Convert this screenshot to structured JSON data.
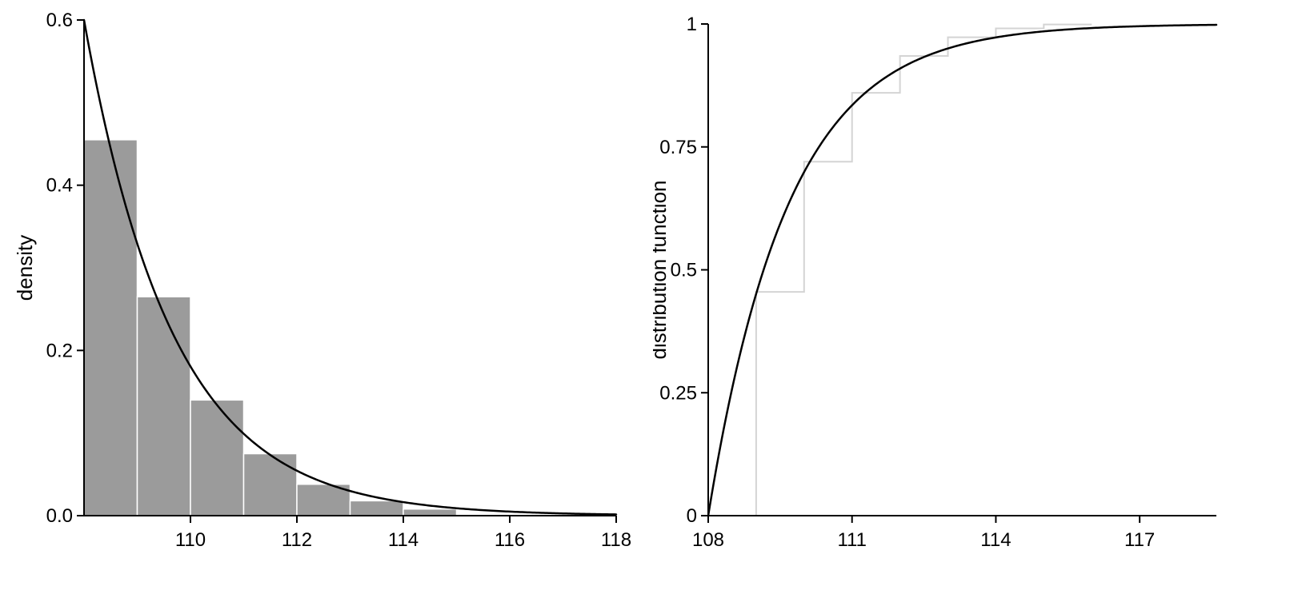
{
  "figure": {
    "background": "#ffffff",
    "description": "Two-panel statistical plot: histogram with exponential density curve (left) and empirical step CDF with exponential distribution function curve (right)"
  },
  "style": {
    "axis_color": "#000000",
    "curve_color": "#000000",
    "bar_fill": "#9b9b9b",
    "bar_border": "#ffffff",
    "step_color": "#d4d4d4"
  },
  "chart_data": [
    {
      "type": "bar",
      "subtype": "histogram_with_density_curve",
      "title": "",
      "xlabel": "",
      "ylabel": "density",
      "xlim": [
        108,
        118
      ],
      "ylim": [
        0,
        0.6
      ],
      "grid": false,
      "legend": false,
      "xticks": {
        "values": [
          110,
          112,
          114,
          116,
          118
        ],
        "labels": [
          "110",
          "112",
          "114",
          "116",
          "118"
        ]
      },
      "yticks": {
        "values": [
          0,
          0.2,
          0.4,
          0.6
        ],
        "labels": [
          "0.0",
          "0.2",
          "0.4",
          "0.6"
        ]
      },
      "bars": {
        "bin_start": 108,
        "bin_width": 1,
        "bin_edges": [
          108,
          109,
          110,
          111,
          112,
          113,
          114,
          115
        ],
        "heights": [
          0.455,
          0.265,
          0.14,
          0.075,
          0.038,
          0.018,
          0.008
        ]
      },
      "curve": {
        "kind": "exp_pdf",
        "rate": 0.6,
        "offset": 108,
        "description": "exponential density 0.6*exp(-0.6*(x-108)), starts at (108, 0.6) and decays to ~0 by x=118"
      }
    },
    {
      "type": "line",
      "subtype": "cdf_with_empirical_step",
      "title": "",
      "xlabel": "",
      "ylabel": "distribution function",
      "xlim": [
        108,
        118.6
      ],
      "ylim": [
        0,
        1
      ],
      "grid": false,
      "legend": false,
      "xticks": {
        "values": [
          108,
          111,
          114,
          117
        ],
        "labels": [
          "108",
          "111",
          "114",
          "117"
        ]
      },
      "yticks": {
        "values": [
          0,
          0.25,
          0.5,
          0.75,
          1
        ],
        "labels": [
          "0",
          "0.25",
          "0.5",
          "0.75",
          "1"
        ]
      },
      "step": {
        "x": [
          109,
          110,
          111,
          112,
          113,
          114,
          115
        ],
        "y": [
          0.455,
          0.72,
          0.86,
          0.935,
          0.973,
          0.991,
          0.999
        ],
        "extend_to": 116
      },
      "curve": {
        "kind": "exp_cdf",
        "rate": 0.6,
        "offset": 108,
        "description": "exponential CDF 1-exp(-0.6*(x-108)), rises from (108, 0) and saturates at 1"
      }
    }
  ]
}
